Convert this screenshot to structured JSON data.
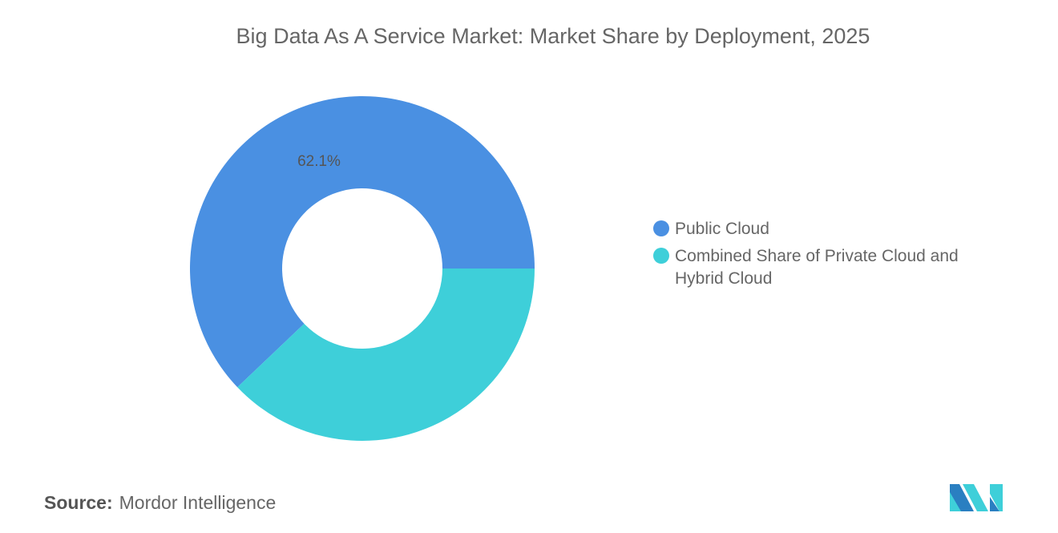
{
  "chart_data": {
    "type": "pie",
    "subtype": "donut",
    "title": "Big Data As A Service Market: Market Share by Deployment, 2025",
    "slices": [
      {
        "label": "Public Cloud",
        "value": 62.1,
        "color": "#4a90e2",
        "data_label": "62.1%"
      },
      {
        "label": "Combined Share of Private Cloud and Hybrid Cloud",
        "value": 37.9,
        "color": "#3ecfd9",
        "data_label": ""
      }
    ],
    "legend_position": "right"
  },
  "source": {
    "label": "Source:",
    "value": "Mordor Intelligence"
  },
  "logo": {
    "text": "Mordor Intelligence logo",
    "colors": [
      "#2a7fc1",
      "#3ecfd9"
    ]
  }
}
